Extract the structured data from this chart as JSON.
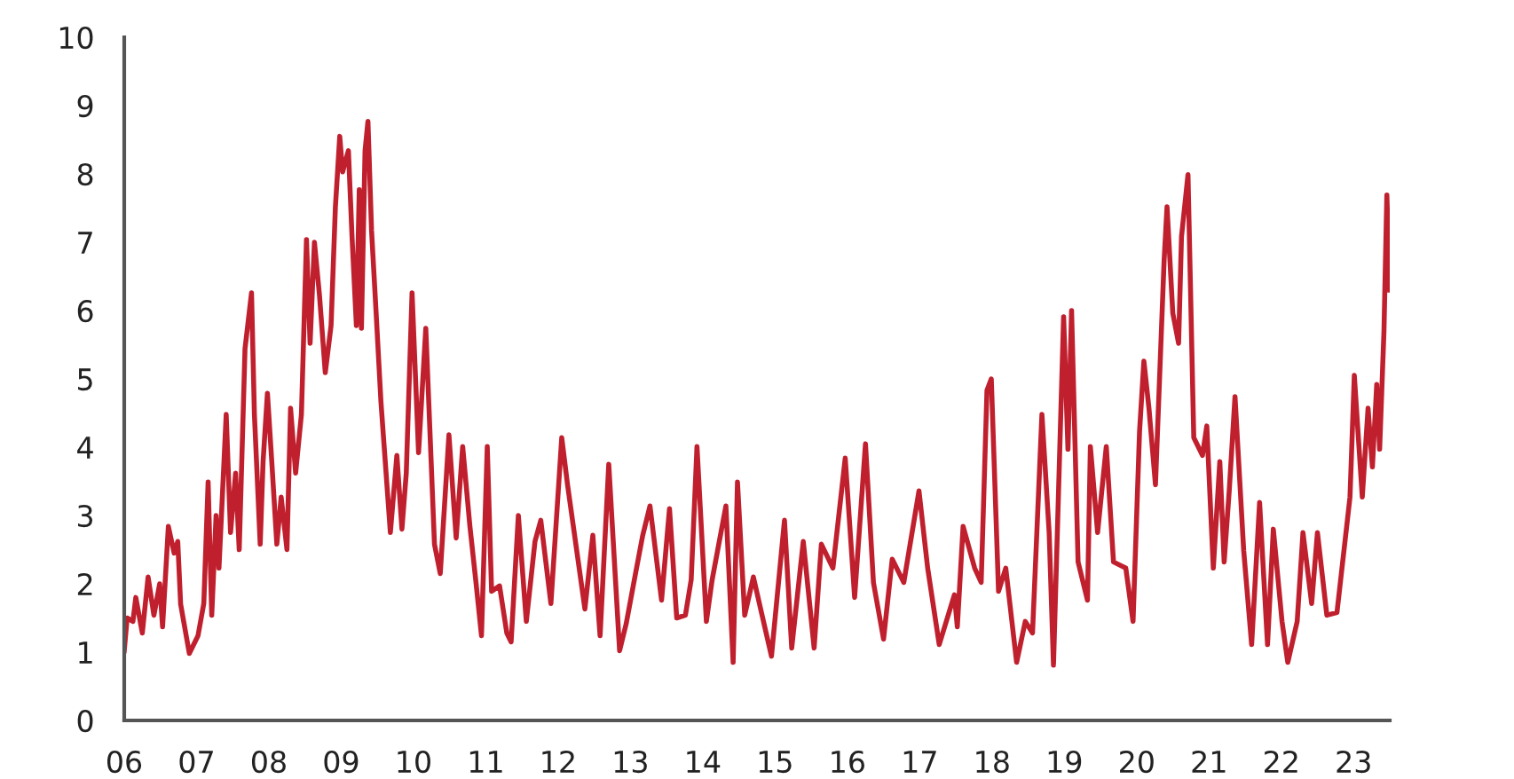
{
  "chart_data": {
    "type": "line",
    "xlim": [
      2006,
      2023.5
    ],
    "ylim": [
      0,
      10
    ],
    "xticks": [
      {
        "value": 2006,
        "label": "06"
      },
      {
        "value": 2007,
        "label": "07"
      },
      {
        "value": 2008,
        "label": "08"
      },
      {
        "value": 2009,
        "label": "09"
      },
      {
        "value": 2010,
        "label": "10"
      },
      {
        "value": 2011,
        "label": "11"
      },
      {
        "value": 2012,
        "label": "12"
      },
      {
        "value": 2013,
        "label": "13"
      },
      {
        "value": 2014,
        "label": "14"
      },
      {
        "value": 2015,
        "label": "15"
      },
      {
        "value": 2016,
        "label": "16"
      },
      {
        "value": 2017,
        "label": "17"
      },
      {
        "value": 2018,
        "label": "18"
      },
      {
        "value": 2019,
        "label": "19"
      },
      {
        "value": 2020,
        "label": "20"
      },
      {
        "value": 2021,
        "label": "21"
      },
      {
        "value": 2022,
        "label": "22"
      },
      {
        "value": 2023,
        "label": "23"
      }
    ],
    "yticks": [
      0,
      1,
      2,
      3,
      4,
      5,
      6,
      7,
      8,
      9,
      10
    ],
    "grid": false,
    "legend": false,
    "marker": "none",
    "line_style": "solid",
    "series": [
      {
        "color": "#c0202e",
        "x": [
          2006.0,
          2006.04,
          2006.12,
          2006.16,
          2006.25,
          2006.33,
          2006.41,
          2006.49,
          2006.53,
          2006.61,
          2006.69,
          2006.74,
          2006.78,
          2006.9,
          2007.02,
          2007.1,
          2007.16,
          2007.21,
          2007.27,
          2007.31,
          2007.41,
          2007.47,
          2007.54,
          2007.59,
          2007.67,
          2007.76,
          2007.8,
          2007.88,
          2007.92,
          2007.98,
          2008.04,
          2008.11,
          2008.17,
          2008.25,
          2008.3,
          2008.37,
          2008.45,
          2008.52,
          2008.57,
          2008.63,
          2008.7,
          2008.78,
          2008.86,
          2008.92,
          2008.98,
          2009.02,
          2009.1,
          2009.15,
          2009.21,
          2009.25,
          2009.28,
          2009.33,
          2009.37,
          2009.42,
          2009.47,
          2009.55,
          2009.68,
          2009.77,
          2009.84,
          2009.9,
          2009.98,
          2010.07,
          2010.17,
          2010.29,
          2010.37,
          2010.49,
          2010.59,
          2010.68,
          2010.78,
          2010.86,
          2010.94,
          2011.02,
          2011.08,
          2011.19,
          2011.29,
          2011.35,
          2011.45,
          2011.56,
          2011.68,
          2011.76,
          2011.9,
          2012.05,
          2012.13,
          2012.37,
          2012.48,
          2012.58,
          2012.7,
          2012.85,
          2012.94,
          2013.07,
          2013.17,
          2013.27,
          2013.43,
          2013.54,
          2013.64,
          2013.76,
          2013.84,
          2013.92,
          2014.05,
          2014.13,
          2014.32,
          2014.42,
          2014.48,
          2014.58,
          2014.7,
          2014.82,
          2014.95,
          2015.13,
          2015.23,
          2015.39,
          2015.54,
          2015.64,
          2015.8,
          2015.97,
          2016.1,
          2016.25,
          2016.36,
          2016.5,
          2016.62,
          2016.78,
          2016.99,
          2017.11,
          2017.27,
          2017.48,
          2017.52,
          2017.6,
          2017.76,
          2017.85,
          2017.93,
          2017.99,
          2018.09,
          2018.19,
          2018.34,
          2018.46,
          2018.56,
          2018.69,
          2018.79,
          2018.85,
          2018.99,
          2019.05,
          2019.1,
          2019.19,
          2019.32,
          2019.36,
          2019.46,
          2019.58,
          2019.68,
          2019.85,
          2019.95,
          2020.04,
          2020.1,
          2020.17,
          2020.26,
          2020.38,
          2020.42,
          2020.5,
          2020.58,
          2020.62,
          2020.71,
          2020.79,
          2020.91,
          2020.97,
          2021.06,
          2021.15,
          2021.21,
          2021.28,
          2021.36,
          2021.48,
          2021.59,
          2021.7,
          2021.81,
          2021.89,
          2022.01,
          2022.09,
          2022.22,
          2022.3,
          2022.42,
          2022.5,
          2022.63,
          2022.77,
          2022.95,
          2023.01,
          2023.12,
          2023.2,
          2023.26,
          2023.32,
          2023.36,
          2023.42,
          2023.46,
          2023.5
        ],
        "values": [
          1.02,
          1.5,
          1.45,
          1.8,
          1.28,
          2.1,
          1.54,
          2.0,
          1.37,
          2.84,
          2.45,
          2.62,
          1.7,
          0.98,
          1.24,
          1.71,
          3.49,
          1.54,
          3.0,
          2.23,
          4.48,
          2.75,
          3.62,
          2.5,
          5.44,
          6.26,
          4.48,
          2.58,
          3.79,
          4.79,
          3.79,
          2.58,
          3.27,
          2.5,
          4.57,
          3.62,
          4.48,
          7.04,
          5.52,
          7.0,
          6.22,
          5.09,
          5.78,
          7.52,
          8.55,
          8.03,
          8.34,
          7.08,
          5.78,
          7.77,
          5.74,
          8.34,
          8.77,
          7.17,
          6.22,
          4.66,
          2.75,
          3.88,
          2.8,
          3.62,
          6.26,
          3.92,
          5.74,
          2.58,
          2.15,
          4.18,
          2.67,
          4.01,
          2.84,
          2.06,
          1.24,
          4.01,
          1.89,
          1.97,
          1.28,
          1.15,
          3.0,
          1.45,
          2.62,
          2.93,
          1.71,
          4.14,
          3.45,
          1.63,
          2.71,
          1.24,
          3.75,
          1.02,
          1.41,
          2.15,
          2.71,
          3.14,
          1.76,
          3.1,
          1.5,
          1.54,
          2.06,
          4.01,
          1.45,
          2.06,
          3.14,
          0.85,
          3.49,
          1.54,
          2.1,
          1.54,
          0.94,
          2.93,
          1.06,
          2.62,
          1.06,
          2.58,
          2.23,
          3.84,
          1.8,
          4.05,
          2.02,
          1.19,
          2.36,
          2.02,
          3.36,
          2.23,
          1.11,
          1.84,
          1.37,
          2.84,
          2.23,
          2.02,
          4.83,
          5.0,
          1.89,
          2.23,
          0.85,
          1.45,
          1.28,
          4.48,
          2.75,
          0.81,
          5.91,
          3.97,
          6.0,
          2.32,
          1.76,
          4.01,
          2.75,
          4.01,
          2.32,
          2.23,
          1.45,
          4.23,
          5.26,
          4.57,
          3.45,
          6.74,
          7.52,
          5.96,
          5.52,
          7.08,
          7.99,
          4.14,
          3.88,
          4.31,
          2.23,
          3.79,
          2.32,
          3.36,
          4.74,
          2.49,
          1.11,
          3.19,
          1.11,
          2.8,
          1.45,
          0.85,
          1.45,
          2.75,
          1.71,
          2.75,
          1.54,
          1.58,
          3.27,
          5.05,
          3.27,
          4.57,
          3.71,
          4.92,
          3.97,
          5.7,
          7.69,
          6.3
        ]
      }
    ]
  }
}
